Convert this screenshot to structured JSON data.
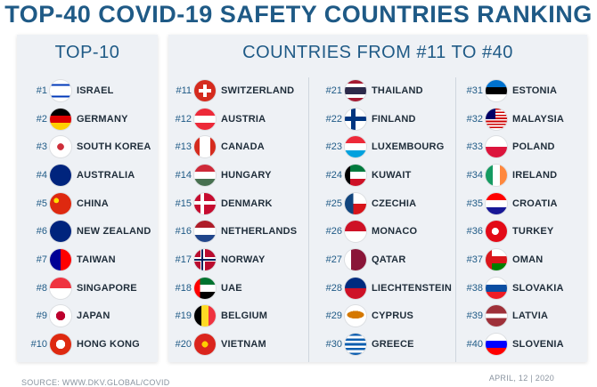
{
  "title": "TOP-40 COVID-19 SAFETY COUNTRIES RANKING",
  "left_panel": {
    "heading": "TOP-10",
    "items": [
      {
        "rank": "#1",
        "name": "ISRAEL",
        "flag": "israel-flag-icon",
        "bg": "linear-gradient(#fff 0 18%,#0038b8 18% 28%,#fff 28% 72%,#0038b8 72% 82%,#fff 82%)"
      },
      {
        "rank": "#2",
        "name": "GERMANY",
        "flag": "germany-flag-icon",
        "bg": "linear-gradient(#000 0 33.3%,#dd0000 33.3% 66.6%,#ffce00 66.6%)"
      },
      {
        "rank": "#3",
        "name": "SOUTH KOREA",
        "flag": "south-korea-flag-icon",
        "bg": "radial-gradient(circle at 50% 50%,#cd2e3a 0 22%,#fff 23%)"
      },
      {
        "rank": "#4",
        "name": "AUSTRALIA",
        "flag": "australia-flag-icon",
        "bg": "linear-gradient(#00247d,#00247d)"
      },
      {
        "rank": "#5",
        "name": "CHINA",
        "flag": "china-flag-icon",
        "bg": "radial-gradient(circle at 30% 35%,#ffde00 0 12%,#de2910 13%)"
      },
      {
        "rank": "#6",
        "name": "NEW ZEALAND",
        "flag": "new-zealand-flag-icon",
        "bg": "linear-gradient(#00247d,#00247d)"
      },
      {
        "rank": "#7",
        "name": "TAIWAN",
        "flag": "taiwan-flag-icon",
        "bg": "linear-gradient(90deg,#000095 0 50%,#fe0000 50%)"
      },
      {
        "rank": "#8",
        "name": "SINGAPORE",
        "flag": "singapore-flag-icon",
        "bg": "linear-gradient(#ef3340 0 50%,#fff 50%)"
      },
      {
        "rank": "#9",
        "name": "JAPAN",
        "flag": "japan-flag-icon",
        "bg": "radial-gradient(circle,#bc002d 0 30%,#fff 31%)"
      },
      {
        "rank": "#10",
        "name": "HONG KONG",
        "flag": "hong-kong-flag-icon",
        "bg": "radial-gradient(circle,#fff 0 30%,#de2910 31%)"
      }
    ]
  },
  "right_panel": {
    "heading": "COUNTRIES FROM #11 TO #40",
    "col1": [
      {
        "rank": "#11",
        "name": "SWITZERLAND",
        "flag": "switzerland-flag-icon",
        "bg": "linear-gradient(#fff,#fff) center/60% 18% no-repeat,linear-gradient(#fff,#fff) center/18% 60% no-repeat,#d52b1e"
      },
      {
        "rank": "#12",
        "name": "AUSTRIA",
        "flag": "austria-flag-icon",
        "bg": "linear-gradient(#ed2939 0 33.3%,#fff 33.3% 66.6%,#ed2939 66.6%)"
      },
      {
        "rank": "#13",
        "name": "CANADA",
        "flag": "canada-flag-icon",
        "bg": "linear-gradient(90deg,#d52b1e 0 25%,#fff 25% 75%,#d52b1e 75%)"
      },
      {
        "rank": "#14",
        "name": "HUNGARY",
        "flag": "hungary-flag-icon",
        "bg": "linear-gradient(#ce2939 0 33.3%,#fff 33.3% 66.6%,#477050 66.6%)"
      },
      {
        "rank": "#15",
        "name": "DENMARK",
        "flag": "denmark-flag-icon",
        "bg": "linear-gradient(#fff,#fff) 0 50%/100% 18% no-repeat,linear-gradient(#fff,#fff) 35% 0/18% 100% no-repeat,#c60c30"
      },
      {
        "rank": "#16",
        "name": "NETHERLANDS",
        "flag": "netherlands-flag-icon",
        "bg": "linear-gradient(#ae1c28 0 33.3%,#fff 33.3% 66.6%,#21468b 66.6%)"
      },
      {
        "rank": "#17",
        "name": "NORWAY",
        "flag": "norway-flag-icon",
        "bg": "linear-gradient(#00205b,#00205b) 0 50%/100% 10% no-repeat,linear-gradient(#00205b,#00205b) 35% 0/10% 100% no-repeat,linear-gradient(#fff,#fff) 0 50%/100% 22% no-repeat,linear-gradient(#fff,#fff) 35% 0/22% 100% no-repeat,#ba0c2f"
      },
      {
        "rank": "#18",
        "name": "UAE",
        "flag": "uae-flag-icon",
        "bg": "linear-gradient(90deg,#ff0000 0 28%,transparent 28%),linear-gradient(#00732f 0 33.3%,#fff 33.3% 66.6%,#000 66.6%)"
      },
      {
        "rank": "#19",
        "name": "BELGIUM",
        "flag": "belgium-flag-icon",
        "bg": "linear-gradient(90deg,#000 0 33.3%,#fdda24 33.3% 66.6%,#ef3340 66.6%)"
      },
      {
        "rank": "#20",
        "name": "VIETNAM",
        "flag": "vietnam-flag-icon",
        "bg": "radial-gradient(circle,#ffcd00 0 20%,#da251d 21%)"
      }
    ],
    "col2": [
      {
        "rank": "#21",
        "name": "THAILAND",
        "flag": "thailand-flag-icon",
        "bg": "linear-gradient(#a51931 0 17%,#fff 17% 33%,#2d2a4a 33% 67%,#fff 67% 83%,#a51931 83%)"
      },
      {
        "rank": "#22",
        "name": "FINLAND",
        "flag": "finland-flag-icon",
        "bg": "linear-gradient(#003580,#003580) 0 50%/100% 22% no-repeat,linear-gradient(#003580,#003580) 35% 0/22% 100% no-repeat,#fff"
      },
      {
        "rank": "#23",
        "name": "LUXEMBOURG",
        "flag": "luxembourg-flag-icon",
        "bg": "linear-gradient(#ed2939 0 33.3%,#fff 33.3% 66.6%,#00a1de 66.6%)"
      },
      {
        "rank": "#24",
        "name": "KUWAIT",
        "flag": "kuwait-flag-icon",
        "bg": "linear-gradient(90deg,#000 0 25%,transparent 25%),linear-gradient(#007a3d 0 33.3%,#fff 33.3% 66.6%,#ce1126 66.6%)"
      },
      {
        "rank": "#25",
        "name": "CZECHIA",
        "flag": "czechia-flag-icon",
        "bg": "linear-gradient(90deg,#11457e 0 40%,transparent 40%),linear-gradient(#fff 0 50%,#d7141a 50%)"
      },
      {
        "rank": "#26",
        "name": "MONACO",
        "flag": "monaco-flag-icon",
        "bg": "linear-gradient(#ce1126 0 50%,#fff 50%)"
      },
      {
        "rank": "#27",
        "name": "QATAR",
        "flag": "qatar-flag-icon",
        "bg": "linear-gradient(90deg,#fff 0 30%,#8a1538 30%)"
      },
      {
        "rank": "#28",
        "name": "LIECHTENSTEIN",
        "flag": "liechtenstein-flag-icon",
        "bg": "linear-gradient(#002b7f 0 50%,#ce1126 50%)"
      },
      {
        "rank": "#29",
        "name": "CYPRUS",
        "flag": "cyprus-flag-icon",
        "bg": "radial-gradient(ellipse 40% 18% at 50% 45%,#d57800 0 98%,#fff 100%)"
      },
      {
        "rank": "#30",
        "name": "GREECE",
        "flag": "greece-flag-icon",
        "bg": "repeating-linear-gradient(#0d5eaf 0 11.1%,#fff 11.1% 22.2%)"
      }
    ],
    "col3": [
      {
        "rank": "#31",
        "name": "ESTONIA",
        "flag": "estonia-flag-icon",
        "bg": "linear-gradient(#0072ce 0 33.3%,#000 33.3% 66.6%,#fff 66.6%)"
      },
      {
        "rank": "#32",
        "name": "MALAYSIA",
        "flag": "malaysia-flag-icon",
        "bg": "linear-gradient(90deg,#010066 0 45%,transparent 45%) 0 0/100% 50% no-repeat,repeating-linear-gradient(#cc0001 0 7.1%,#fff 7.1% 14.2%)"
      },
      {
        "rank": "#33",
        "name": "POLAND",
        "flag": "poland-flag-icon",
        "bg": "linear-gradient(#fff 0 50%,#dc143c 50%)"
      },
      {
        "rank": "#34",
        "name": "IRELAND",
        "flag": "ireland-flag-icon",
        "bg": "linear-gradient(90deg,#169b62 0 33.3%,#fff 33.3% 66.6%,#ff883e 66.6%)"
      },
      {
        "rank": "#35",
        "name": "CROATIA",
        "flag": "croatia-flag-icon",
        "bg": "linear-gradient(#ff0000 0 33.3%,#fff 33.3% 66.6%,#171796 66.6%)"
      },
      {
        "rank": "#36",
        "name": "TURKEY",
        "flag": "turkey-flag-icon",
        "bg": "radial-gradient(circle at 45% 50%,#fff 0 22%,#e30a17 23%)"
      },
      {
        "rank": "#37",
        "name": "OMAN",
        "flag": "oman-flag-icon",
        "bg": "linear-gradient(90deg,#db161b 0 30%,transparent 30%),linear-gradient(#fff 0 33.3%,#db161b 33.3% 66.6%,#008000 66.6%)"
      },
      {
        "rank": "#38",
        "name": "SLOVAKIA",
        "flag": "slovakia-flag-icon",
        "bg": "linear-gradient(#fff 0 33.3%,#0b4ea2 33.3% 66.6%,#ee1c25 66.6%)"
      },
      {
        "rank": "#39",
        "name": "LATVIA",
        "flag": "latvia-flag-icon",
        "bg": "linear-gradient(#9e3039 0 40%,#fff 40% 60%,#9e3039 60%)"
      },
      {
        "rank": "#40",
        "name": "SLOVENIA",
        "flag": "slovenia-flag-icon",
        "bg": "linear-gradient(#fff 0 33.3%,#0000ff 33.3% 66.6%,#ff0000 66.6%)"
      }
    ]
  },
  "footer": {
    "source": "SOURCE: WWW.DKV.GLOBAL/COVID",
    "date": "APRIL, 12 | 2020"
  }
}
